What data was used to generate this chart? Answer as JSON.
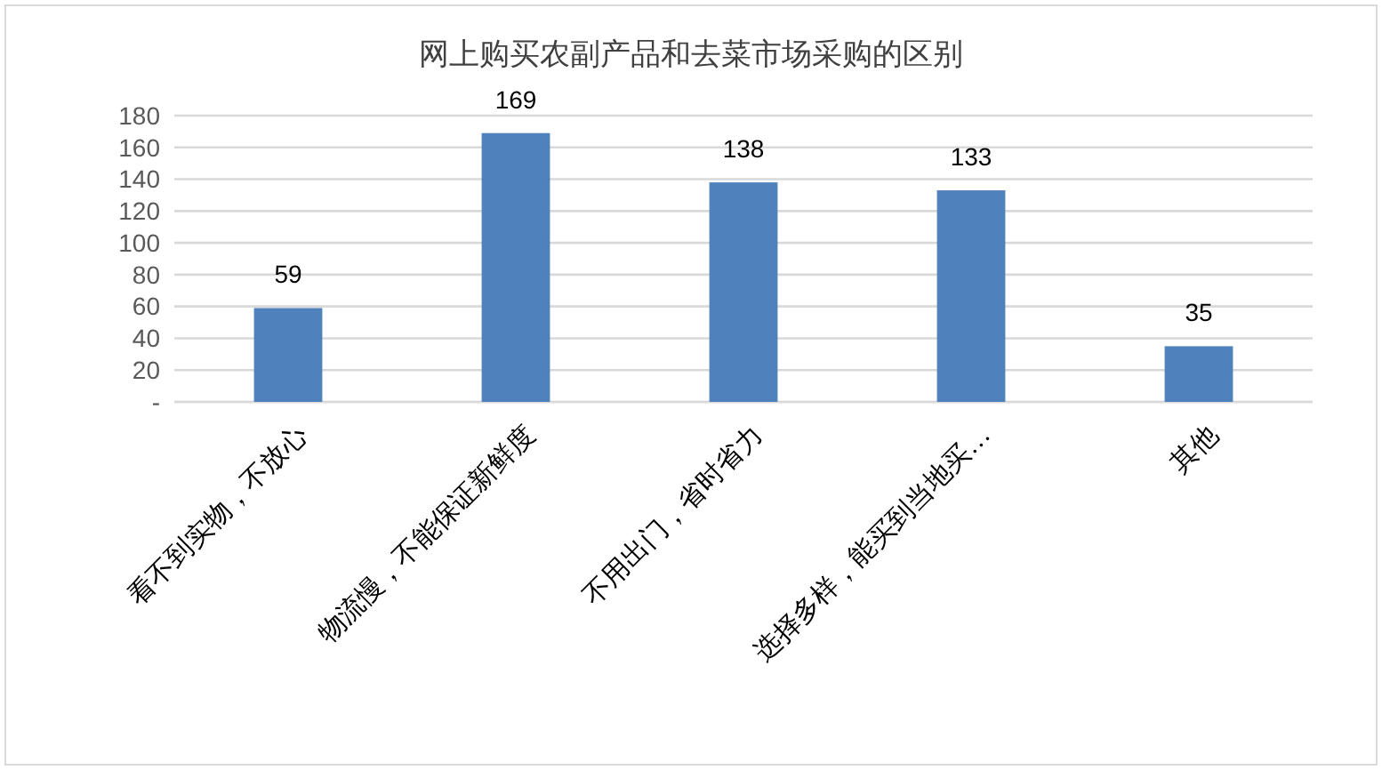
{
  "chart_data": {
    "type": "bar",
    "title": "网上购买农副产品和去菜市场采购的区别",
    "categories": [
      "看不到实物，不放心",
      "物流慢，不能保证新鲜度",
      "不用出门，省时省力",
      "选择多样，能买到当地买…",
      "其他"
    ],
    "values": [
      59,
      169,
      138,
      133,
      35
    ],
    "color": "#4f81bd",
    "ylim": [
      0,
      180
    ],
    "yticks": [
      {
        "value": 0,
        "label": "-"
      },
      20,
      40,
      60,
      80,
      100,
      120,
      140,
      160,
      180
    ],
    "grid": "y",
    "data_labels": true
  }
}
